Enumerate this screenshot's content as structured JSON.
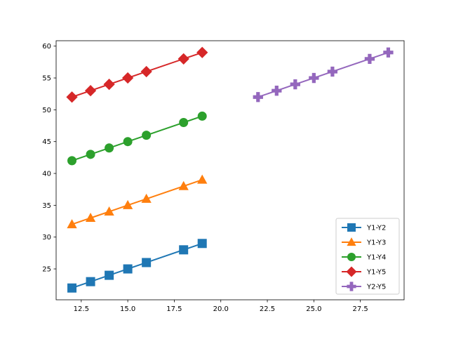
{
  "chart_data": {
    "type": "line",
    "title": "",
    "xlabel": "",
    "ylabel": "",
    "xlim": [
      11.15,
      29.85
    ],
    "ylim": [
      20.15,
      60.85
    ],
    "xticks": [
      12.5,
      15.0,
      17.5,
      20.0,
      22.5,
      25.0,
      27.5
    ],
    "xtick_labels": [
      "12.5",
      "15.0",
      "17.5",
      "20.0",
      "22.5",
      "25.0",
      "27.5"
    ],
    "yticks": [
      25,
      30,
      35,
      40,
      45,
      50,
      55,
      60
    ],
    "ytick_labels": [
      "25",
      "30",
      "35",
      "40",
      "45",
      "50",
      "55",
      "60"
    ],
    "grid": false,
    "legend_position": "lower-right",
    "series": [
      {
        "name": "Y1-Y2",
        "color": "#1f77b4",
        "marker": "square",
        "x": [
          12,
          13,
          14,
          15,
          16,
          18,
          19
        ],
        "y": [
          22,
          23,
          24,
          25,
          26,
          28,
          29
        ]
      },
      {
        "name": "Y1-Y3",
        "color": "#ff7f0e",
        "marker": "triangle",
        "x": [
          12,
          13,
          14,
          15,
          16,
          18,
          19
        ],
        "y": [
          32,
          33,
          34,
          35,
          36,
          38,
          39
        ]
      },
      {
        "name": "Y1-Y4",
        "color": "#2ca02c",
        "marker": "circle",
        "x": [
          12,
          13,
          14,
          15,
          16,
          18,
          19
        ],
        "y": [
          42,
          43,
          44,
          45,
          46,
          48,
          49
        ]
      },
      {
        "name": "Y1-Y5",
        "color": "#d62728",
        "marker": "diamond",
        "x": [
          12,
          13,
          14,
          15,
          16,
          18,
          19
        ],
        "y": [
          52,
          53,
          54,
          55,
          56,
          58,
          59
        ]
      },
      {
        "name": "Y2-Y5",
        "color": "#9467bd",
        "marker": "plus",
        "x": [
          22,
          23,
          24,
          25,
          26,
          28,
          29
        ],
        "y": [
          52,
          53,
          54,
          55,
          56,
          58,
          59
        ]
      }
    ]
  }
}
